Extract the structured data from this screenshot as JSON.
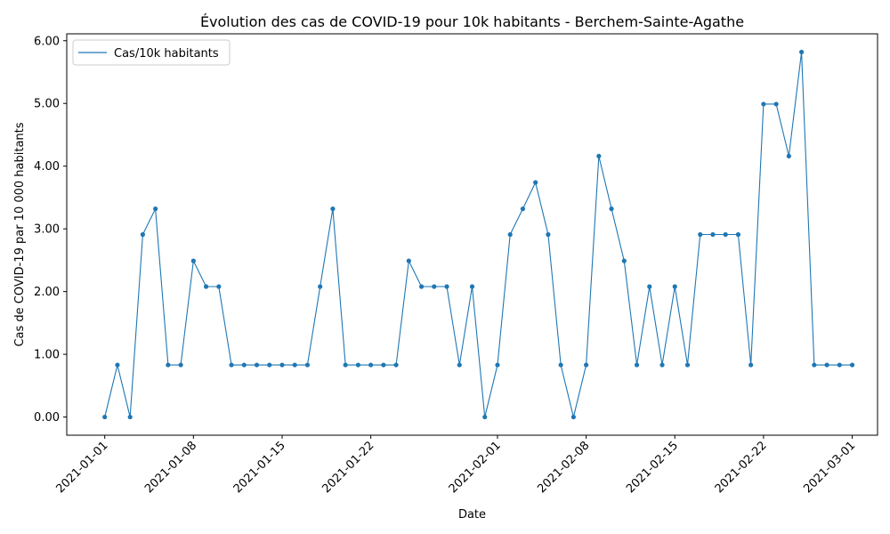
{
  "chart_data": {
    "type": "line",
    "title": "Évolution des cas de COVID-19 pour 10k habitants - Berchem-Sainte-Agathe",
    "xlabel": "Date",
    "ylabel": "Cas de COVID-19 par 10 000 habitants",
    "ylim": [
      -0.29,
      6.11
    ],
    "xlim": [
      "2020-12-29",
      "2021-03-03"
    ],
    "yticks": [
      "0.00",
      "1.00",
      "2.00",
      "3.00",
      "4.00",
      "5.00",
      "6.00"
    ],
    "ytick_values": [
      0,
      1,
      2,
      3,
      4,
      5,
      6
    ],
    "xticks": [
      "2021-01-01",
      "2021-01-08",
      "2021-01-15",
      "2021-01-22",
      "2021-02-01",
      "2021-02-08",
      "2021-02-15",
      "2021-02-22",
      "2021-03-01"
    ],
    "legend_position": "top-left",
    "grid": false,
    "series": [
      {
        "name": "Cas/10k habitants",
        "color": "#1f77b4",
        "x": [
          "2021-01-01",
          "2021-01-02",
          "2021-01-03",
          "2021-01-04",
          "2021-01-05",
          "2021-01-06",
          "2021-01-07",
          "2021-01-08",
          "2021-01-09",
          "2021-01-10",
          "2021-01-11",
          "2021-01-12",
          "2021-01-13",
          "2021-01-14",
          "2021-01-15",
          "2021-01-16",
          "2021-01-17",
          "2021-01-18",
          "2021-01-19",
          "2021-01-20",
          "2021-01-21",
          "2021-01-22",
          "2021-01-23",
          "2021-01-24",
          "2021-01-25",
          "2021-01-26",
          "2021-01-27",
          "2021-01-28",
          "2021-01-29",
          "2021-01-30",
          "2021-01-31",
          "2021-02-01",
          "2021-02-02",
          "2021-02-03",
          "2021-02-04",
          "2021-02-05",
          "2021-02-06",
          "2021-02-07",
          "2021-02-08",
          "2021-02-09",
          "2021-02-10",
          "2021-02-11",
          "2021-02-12",
          "2021-02-13",
          "2021-02-14",
          "2021-02-15",
          "2021-02-16",
          "2021-02-17",
          "2021-02-18",
          "2021-02-19",
          "2021-02-20",
          "2021-02-21",
          "2021-02-22",
          "2021-02-23",
          "2021-02-24",
          "2021-02-25",
          "2021-02-26",
          "2021-02-27",
          "2021-02-28",
          "2021-03-01"
        ],
        "values": [
          0,
          0.83,
          0,
          2.91,
          3.32,
          0.83,
          0.83,
          2.49,
          2.08,
          2.08,
          0.83,
          0.83,
          0.83,
          0.83,
          0.83,
          0.83,
          0.83,
          2.08,
          3.32,
          0.83,
          0.83,
          0.83,
          0.83,
          0.83,
          2.49,
          2.08,
          2.08,
          2.08,
          0.83,
          2.08,
          0,
          0.83,
          2.91,
          3.32,
          3.74,
          2.91,
          0.83,
          0,
          0.83,
          4.16,
          3.32,
          2.49,
          0.83,
          2.08,
          0.83,
          2.08,
          0.83,
          2.91,
          2.91,
          2.91,
          2.91,
          0.83,
          4.99,
          4.99,
          4.16,
          5.82,
          0.83,
          0.83,
          0.83,
          0.83
        ]
      }
    ]
  }
}
